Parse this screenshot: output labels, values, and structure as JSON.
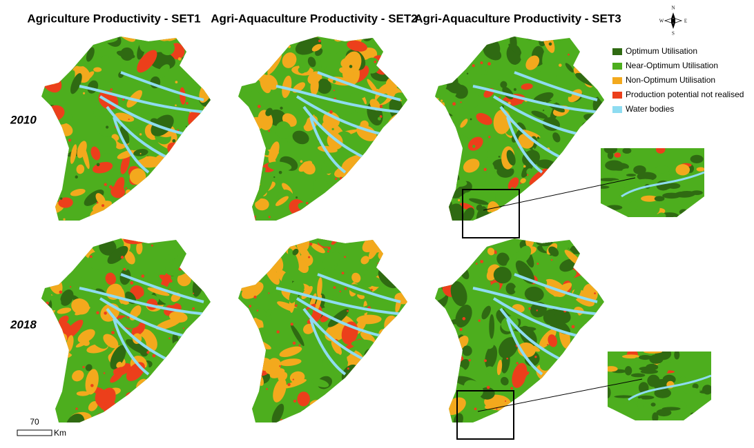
{
  "titles": [
    "Agriculture Productivity - SET1",
    "Agri-Aquaculture Productivity - SET2",
    "Agri-Aquaculture Productivity - SET3"
  ],
  "rows": [
    "2010",
    "2018"
  ],
  "legend": [
    {
      "label": "Optimum Utilisation",
      "color": "#2f6a12"
    },
    {
      "label": "Near-Optimum Utilisation",
      "color": "#4dae1e"
    },
    {
      "label": "Non-Optimum Utilisation",
      "color": "#f3a91d"
    },
    {
      "label": "Production potential not realised",
      "color": "#ec3f1b"
    },
    {
      "label": "Water bodies",
      "color": "#8edcf1"
    }
  ],
  "compass": {
    "n": "N",
    "e": "E",
    "s": "S",
    "w": "W"
  },
  "scale_bar": {
    "distance": "70",
    "unit": "Km"
  }
}
